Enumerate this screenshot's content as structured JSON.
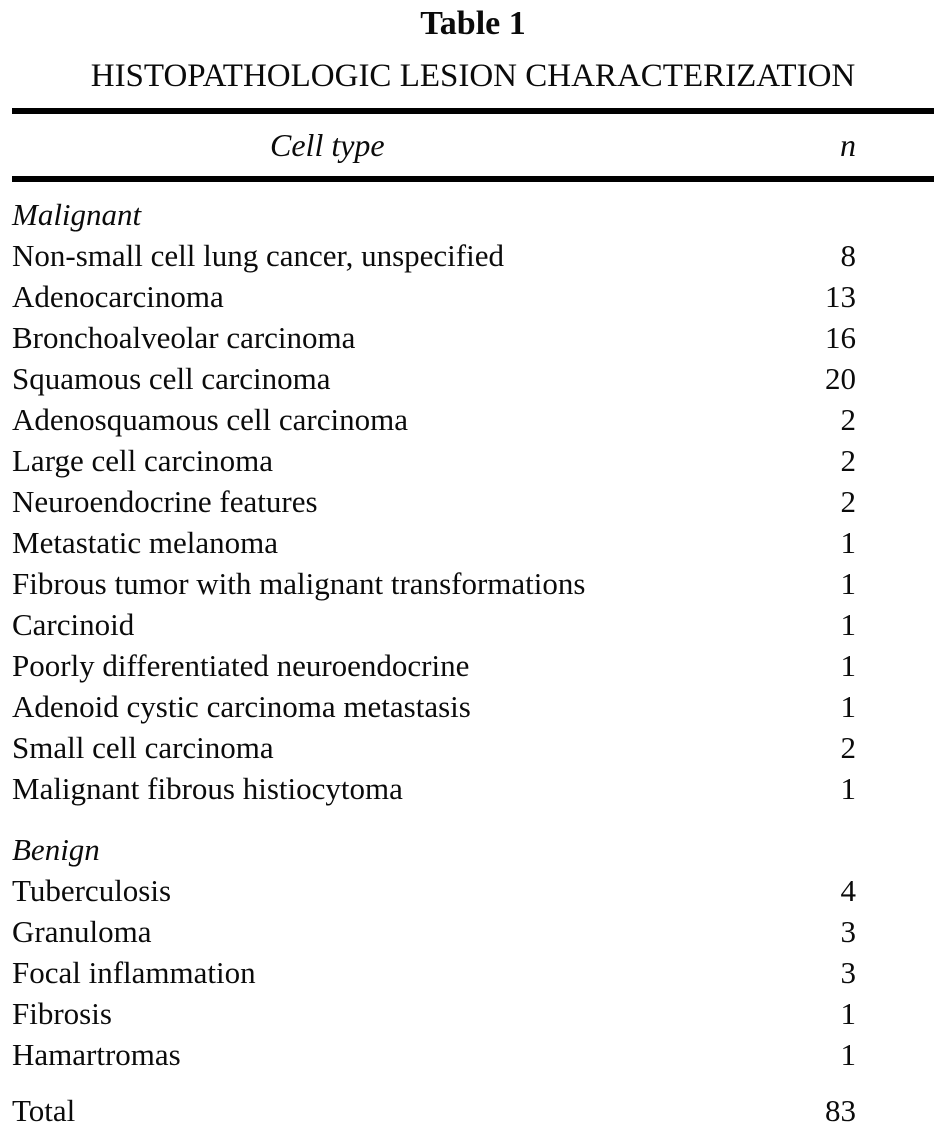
{
  "table": {
    "label": "Table 1",
    "title": "HISTOPATHOLOGIC LESION CHARACTERIZATION",
    "columns": {
      "cell_type": "Cell type",
      "n": "n"
    },
    "sections": [
      {
        "name": "Malignant",
        "rows": [
          {
            "label": "Non-small cell lung cancer, unspecified",
            "n": "8"
          },
          {
            "label": "Adenocarcinoma",
            "n": "13"
          },
          {
            "label": "Bronchoalveolar carcinoma",
            "n": "16"
          },
          {
            "label": "Squamous cell carcinoma",
            "n": "20"
          },
          {
            "label": "Adenosquamous cell carcinoma",
            "n": "2"
          },
          {
            "label": "Large cell carcinoma",
            "n": "2"
          },
          {
            "label": "Neuroendocrine features",
            "n": "2"
          },
          {
            "label": "Metastatic melanoma",
            "n": "1"
          },
          {
            "label": "Fibrous tumor with malignant transformations",
            "n": "1"
          },
          {
            "label": "Carcinoid",
            "n": "1"
          },
          {
            "label": "Poorly differentiated neuroendocrine",
            "n": "1"
          },
          {
            "label": "Adenoid cystic carcinoma metastasis",
            "n": "1"
          },
          {
            "label": "Small cell carcinoma",
            "n": "2"
          },
          {
            "label": "Malignant fibrous histiocytoma",
            "n": "1"
          }
        ]
      },
      {
        "name": "Benign",
        "rows": [
          {
            "label": "Tuberculosis",
            "n": "4"
          },
          {
            "label": "Granuloma",
            "n": "3"
          },
          {
            "label": "Focal inflammation",
            "n": "3"
          },
          {
            "label": "Fibrosis",
            "n": "1"
          },
          {
            "label": "Hamartromas",
            "n": "1"
          }
        ]
      }
    ],
    "total": {
      "label": "Total",
      "n": "83"
    }
  },
  "colors": {
    "background": "#ffffff",
    "text": "#0b0b0b",
    "rule": "#000000"
  }
}
